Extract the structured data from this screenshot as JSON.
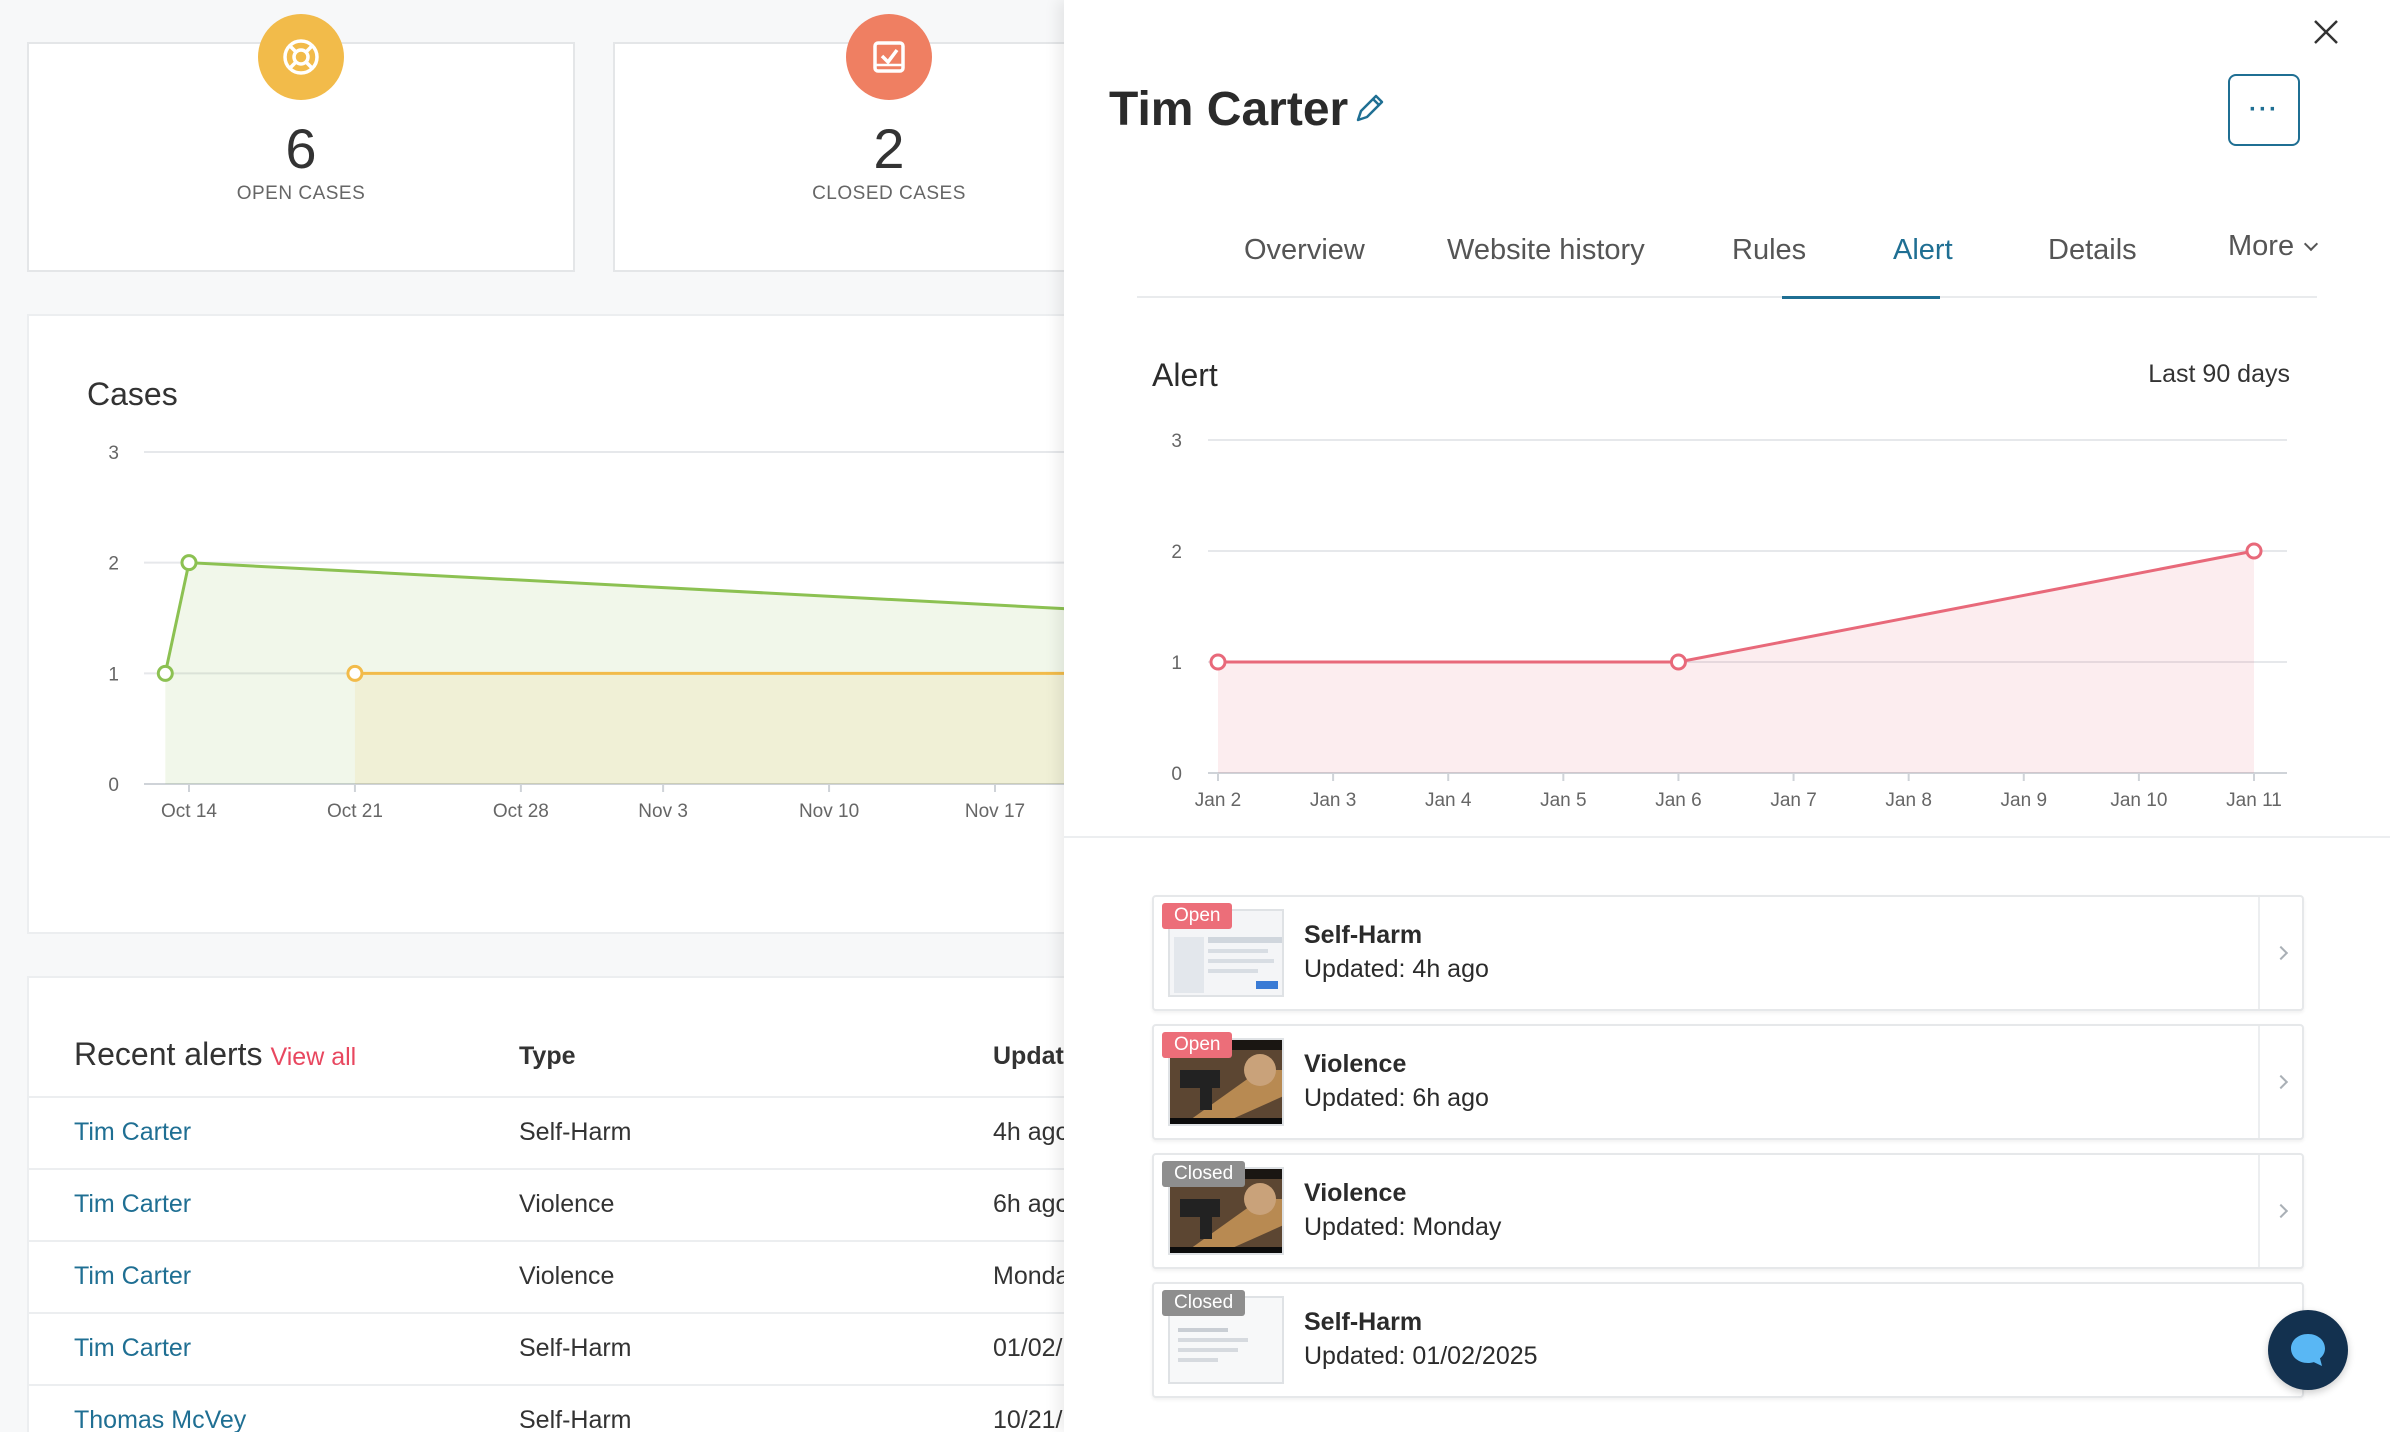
{
  "stats": [
    {
      "value": "6",
      "label": "OPEN CASES",
      "icon": "lifebuoy-icon",
      "color": "#f2bb4a"
    },
    {
      "value": "2",
      "label": "CLOSED CASES",
      "icon": "checked-inbox-icon",
      "color": "#ef7f62"
    }
  ],
  "cases": {
    "title": "Cases"
  },
  "recent_alerts": {
    "title": "Recent alerts",
    "view_all": "View all",
    "columns": [
      "Type",
      "Update"
    ],
    "rows": [
      {
        "name": "Tim Carter",
        "type": "Self-Harm",
        "updated": "4h ago"
      },
      {
        "name": "Tim Carter",
        "type": "Violence",
        "updated": "6h ago"
      },
      {
        "name": "Tim Carter",
        "type": "Violence",
        "updated": "Monday"
      },
      {
        "name": "Tim Carter",
        "type": "Self-Harm",
        "updated": "01/02/"
      },
      {
        "name": "Thomas McVey",
        "type": "Self-Harm",
        "updated": "10/21/"
      }
    ]
  },
  "panel": {
    "title": "Tim Carter",
    "more_button": "···",
    "tabs": [
      {
        "label": "Overview",
        "active": false
      },
      {
        "label": "Website history",
        "active": false
      },
      {
        "label": "Rules",
        "active": false
      },
      {
        "label": "Alert",
        "active": true
      },
      {
        "label": "Details",
        "active": false
      },
      {
        "label": "More",
        "active": false
      }
    ],
    "alert_section": {
      "title": "Alert",
      "range": "Last 90 days"
    },
    "items": [
      {
        "status": "Open",
        "title": "Self-Harm",
        "updated": "Updated: 4h ago",
        "thumb": "screenshot"
      },
      {
        "status": "Open",
        "title": "Violence",
        "updated": "Updated: 6h ago",
        "thumb": "photo"
      },
      {
        "status": "Closed",
        "title": "Violence",
        "updated": "Updated: Monday",
        "thumb": "photo"
      },
      {
        "status": "Closed",
        "title": "Self-Harm",
        "updated": "Updated: 01/02/2025",
        "thumb": "screenshot"
      }
    ]
  },
  "colors": {
    "accent": "#1f6f93",
    "danger": "#e8475f",
    "open_badge": "#ec6e79",
    "closed_badge": "#8e8e8e",
    "cases_green": "#8cc152",
    "cases_yellow": "#f2bb4a",
    "alert_red": "#e8697a"
  },
  "chart_data": [
    {
      "type": "area",
      "title": "Cases",
      "categories": [
        "Oct 14",
        "Oct 21",
        "Oct 28",
        "Nov 3",
        "Nov 10",
        "Nov 17"
      ],
      "ylim": [
        0,
        3
      ],
      "yticks": [
        0,
        1,
        2,
        3
      ],
      "grid": true,
      "series": [
        {
          "color": "#8cc152",
          "points": [
            [
              "Oct 13",
              1
            ],
            [
              "Oct 14",
              2
            ],
            [
              "Nov 23",
              1.55
            ]
          ]
        },
        {
          "color": "#f2bb4a",
          "points": [
            [
              "Oct 21",
              1
            ],
            [
              "Nov 23",
              1
            ]
          ]
        }
      ]
    },
    {
      "type": "area",
      "title": "Alert",
      "categories": [
        "Jan 2",
        "Jan 3",
        "Jan 4",
        "Jan 5",
        "Jan 6",
        "Jan 7",
        "Jan 8",
        "Jan 9",
        "Jan 10",
        "Jan 11"
      ],
      "ylim": [
        0,
        3
      ],
      "yticks": [
        0,
        1,
        2,
        3
      ],
      "grid": true,
      "series": [
        {
          "color": "#e8697a",
          "points": [
            [
              "Jan 2",
              1
            ],
            [
              "Jan 6",
              1
            ],
            [
              "Jan 11",
              2
            ]
          ]
        }
      ]
    }
  ]
}
